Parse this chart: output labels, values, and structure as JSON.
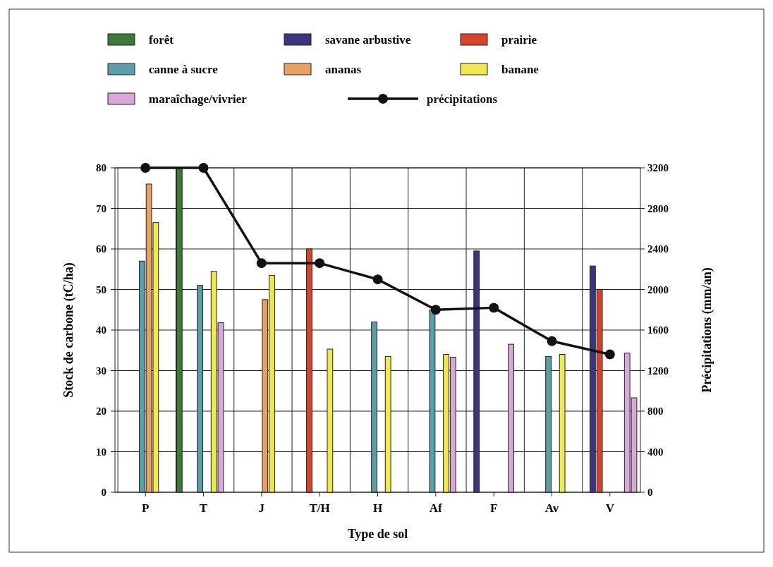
{
  "chart_data": {
    "type": "bar",
    "xlabel": "Type de sol",
    "ylabel": "Stock de carbone (tC/ha)",
    "y2label": "Précipitations (mm/an)",
    "categories": [
      "P",
      "T",
      "J",
      "T/H",
      "H",
      "Af",
      "F",
      "Av",
      "V"
    ],
    "series": [
      {
        "name": "forêt",
        "color": "#3d7a3a",
        "values": [
          null,
          80,
          null,
          null,
          null,
          null,
          null,
          null,
          null
        ]
      },
      {
        "name": "savane arbustive",
        "color": "#3b3580",
        "values": [
          null,
          null,
          null,
          null,
          null,
          null,
          59.5,
          null,
          55.8
        ]
      },
      {
        "name": "prairie",
        "color": "#d8432c",
        "values": [
          null,
          null,
          null,
          60,
          null,
          null,
          null,
          null,
          50
        ]
      },
      {
        "name": "canne à sucre",
        "color": "#5a9fa8",
        "values": [
          57,
          51,
          null,
          null,
          42,
          45,
          null,
          33.5,
          null
        ]
      },
      {
        "name": "ananas",
        "color": "#e8a060",
        "values": [
          76,
          null,
          47.5,
          null,
          null,
          null,
          null,
          null,
          null
        ]
      },
      {
        "name": "banane",
        "color": "#f0e850",
        "values": [
          66.5,
          54.5,
          53.5,
          35.3,
          33.5,
          34,
          null,
          34,
          null
        ]
      },
      {
        "name": "maraîchage/vivrier",
        "color": "#d9a8d8",
        "values": [
          null,
          41.8,
          null,
          null,
          null,
          33.3,
          36.5,
          null,
          34.3
        ]
      },
      {
        "color": "#d9a8d8",
        "values": [
          null,
          null,
          null,
          null,
          null,
          null,
          null,
          null,
          23.3
        ]
      },
      {
        "name": "précipitations",
        "type": "line",
        "axis": "y2",
        "color": "#111111",
        "marker": "circle",
        "values": [
          3200,
          3200,
          2260,
          2260,
          2100,
          1800,
          1820,
          1490,
          1360
        ]
      }
    ],
    "ylim": [
      0,
      80
    ],
    "yticks": [
      0,
      10,
      20,
      30,
      40,
      50,
      60,
      70,
      80
    ],
    "y2lim": [
      0,
      3200
    ],
    "y2ticks": [
      0,
      400,
      800,
      1200,
      1600,
      2000,
      2400,
      2800,
      3200
    ],
    "grid": true,
    "legend": "top"
  }
}
